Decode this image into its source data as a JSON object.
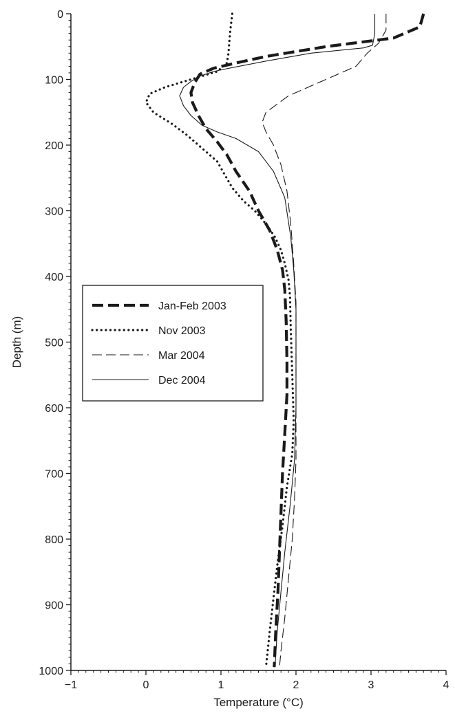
{
  "chart_data": {
    "type": "line",
    "title": "",
    "xlabel": "Temperature (°C)",
    "ylabel": "Depth (m)",
    "xlim": [
      -1,
      4
    ],
    "ylim": [
      0,
      1000
    ],
    "y_inverted": true,
    "x_ticks": [
      -1,
      0,
      1,
      2,
      3,
      4
    ],
    "x_tick_labels": [
      "−1",
      "0",
      "1",
      "2",
      "3",
      "4"
    ],
    "y_ticks": [
      0,
      100,
      200,
      300,
      400,
      500,
      600,
      700,
      800,
      900,
      1000
    ],
    "y_tick_labels": [
      "0",
      "100",
      "200",
      "300",
      "400",
      "500",
      "600",
      "700",
      "800",
      "900",
      "1000"
    ],
    "grid": false,
    "legend": {
      "position": "middle-left"
    },
    "series": [
      {
        "name": "Jan-Feb 2003",
        "style": "heavy-dash",
        "color": "#1a1a1a",
        "points": [
          [
            3.7,
            0
          ],
          [
            3.65,
            20
          ],
          [
            3.3,
            37
          ],
          [
            2.4,
            50
          ],
          [
            1.6,
            65
          ],
          [
            1.2,
            75
          ],
          [
            0.9,
            83
          ],
          [
            0.72,
            92
          ],
          [
            0.65,
            105
          ],
          [
            0.6,
            120
          ],
          [
            0.62,
            135
          ],
          [
            0.7,
            155
          ],
          [
            0.8,
            175
          ],
          [
            0.95,
            195
          ],
          [
            1.08,
            215
          ],
          [
            1.2,
            240
          ],
          [
            1.38,
            270
          ],
          [
            1.5,
            300
          ],
          [
            1.65,
            330
          ],
          [
            1.75,
            360
          ],
          [
            1.82,
            390
          ],
          [
            1.85,
            420
          ],
          [
            1.87,
            470
          ],
          [
            1.88,
            530
          ],
          [
            1.88,
            580
          ],
          [
            1.85,
            640
          ],
          [
            1.82,
            700
          ],
          [
            1.8,
            760
          ],
          [
            1.78,
            820
          ],
          [
            1.76,
            880
          ],
          [
            1.73,
            940
          ],
          [
            1.71,
            995
          ]
        ]
      },
      {
        "name": "Nov 2003",
        "style": "dotted",
        "color": "#1a1a1a",
        "points": [
          [
            1.15,
            0
          ],
          [
            1.12,
            30
          ],
          [
            1.1,
            60
          ],
          [
            1.08,
            75
          ],
          [
            0.95,
            88
          ],
          [
            0.6,
            100
          ],
          [
            0.25,
            112
          ],
          [
            0.05,
            122
          ],
          [
            0.0,
            135
          ],
          [
            0.1,
            150
          ],
          [
            0.35,
            168
          ],
          [
            0.55,
            185
          ],
          [
            0.75,
            205
          ],
          [
            0.95,
            225
          ],
          [
            1.05,
            245
          ],
          [
            1.15,
            265
          ],
          [
            1.3,
            285
          ],
          [
            1.45,
            300
          ],
          [
            1.6,
            320
          ],
          [
            1.72,
            340
          ],
          [
            1.8,
            360
          ],
          [
            1.85,
            380
          ],
          [
            1.9,
            405
          ],
          [
            1.92,
            430
          ],
          [
            1.93,
            480
          ],
          [
            1.95,
            550
          ],
          [
            1.97,
            620
          ],
          [
            1.95,
            670
          ],
          [
            1.88,
            720
          ],
          [
            1.82,
            780
          ],
          [
            1.75,
            840
          ],
          [
            1.7,
            890
          ],
          [
            1.65,
            940
          ],
          [
            1.6,
            995
          ]
        ]
      },
      {
        "name": "Mar 2004",
        "style": "long-dash",
        "color": "#1a1a1a",
        "points": [
          [
            3.2,
            0
          ],
          [
            3.2,
            25
          ],
          [
            3.1,
            45
          ],
          [
            2.95,
            60
          ],
          [
            2.8,
            80
          ],
          [
            2.5,
            95
          ],
          [
            2.2,
            110
          ],
          [
            1.9,
            125
          ],
          [
            1.6,
            150
          ],
          [
            1.55,
            165
          ],
          [
            1.6,
            180
          ],
          [
            1.7,
            200
          ],
          [
            1.8,
            230
          ],
          [
            1.88,
            270
          ],
          [
            1.93,
            320
          ],
          [
            1.97,
            380
          ],
          [
            2.0,
            440
          ],
          [
            2.0,
            520
          ],
          [
            2.0,
            600
          ],
          [
            2.0,
            680
          ],
          [
            1.98,
            740
          ],
          [
            1.95,
            800
          ],
          [
            1.9,
            860
          ],
          [
            1.85,
            920
          ],
          [
            1.8,
            970
          ],
          [
            1.78,
            995
          ]
        ]
      },
      {
        "name": "Dec 2004",
        "style": "thin-solid",
        "color": "#1a1a1a",
        "points": [
          [
            3.05,
            0
          ],
          [
            3.05,
            30
          ],
          [
            3.02,
            48
          ],
          [
            2.9,
            52
          ],
          [
            2.2,
            60
          ],
          [
            1.6,
            72
          ],
          [
            1.15,
            82
          ],
          [
            0.9,
            88
          ],
          [
            0.72,
            95
          ],
          [
            0.6,
            103
          ],
          [
            0.5,
            112
          ],
          [
            0.45,
            125
          ],
          [
            0.5,
            140
          ],
          [
            0.6,
            155
          ],
          [
            0.75,
            170
          ],
          [
            0.95,
            180
          ],
          [
            1.2,
            190
          ],
          [
            1.5,
            210
          ],
          [
            1.7,
            240
          ],
          [
            1.85,
            280
          ],
          [
            1.93,
            340
          ],
          [
            1.97,
            390
          ],
          [
            2.0,
            450
          ],
          [
            2.0,
            520
          ],
          [
            2.0,
            600
          ],
          [
            1.98,
            680
          ],
          [
            1.92,
            750
          ],
          [
            1.85,
            820
          ],
          [
            1.8,
            880
          ],
          [
            1.75,
            940
          ],
          [
            1.72,
            995
          ]
        ]
      }
    ]
  }
}
